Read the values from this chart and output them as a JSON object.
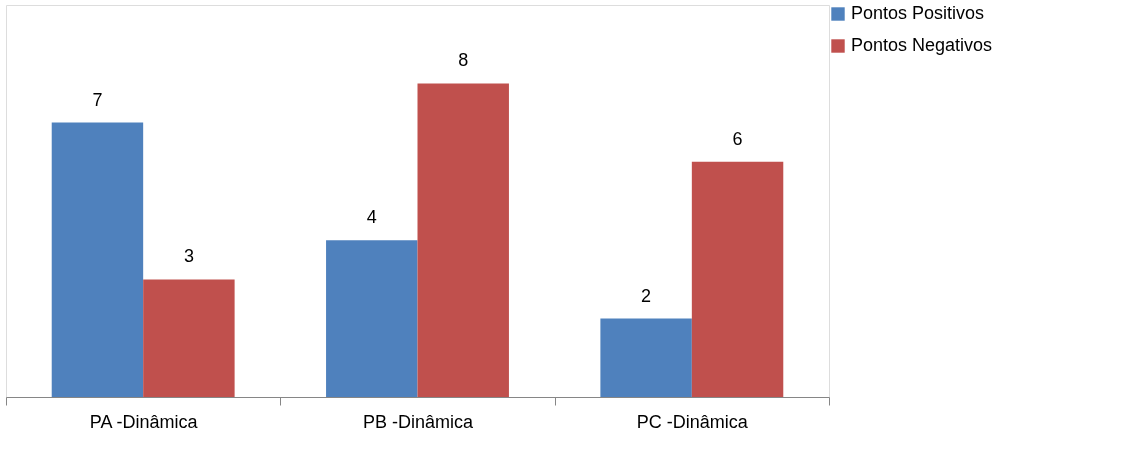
{
  "chart_data": {
    "type": "bar",
    "categories": [
      "PA -Dinâmica",
      "PB -Dinâmica",
      "PC -Dinâmica"
    ],
    "series": [
      {
        "name": "Pontos Positivos",
        "color": "#4f81bd",
        "values": [
          7,
          4,
          2
        ]
      },
      {
        "name": "Pontos Negativos",
        "color": "#c0504d",
        "values": [
          3,
          8,
          6
        ]
      }
    ],
    "ylim": [
      0,
      10
    ],
    "data_labels": true,
    "legend": "right",
    "grid": false,
    "tick_labels": "x"
  }
}
